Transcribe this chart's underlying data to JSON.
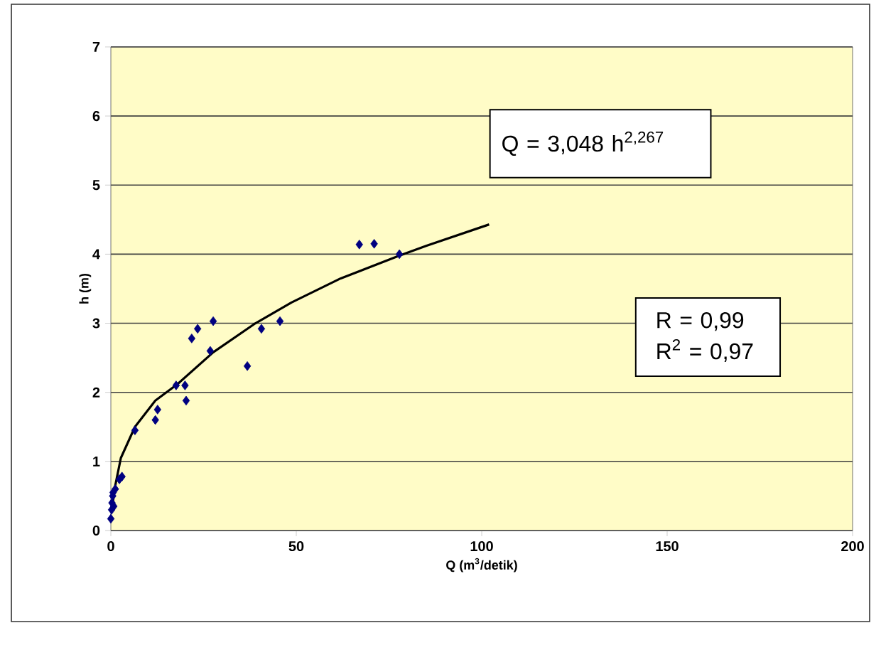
{
  "chart_data": {
    "type": "scatter",
    "xlabel": "Q (m$^{3}$/detik)",
    "ylabel": "h (m)",
    "xlim": [
      0,
      200
    ],
    "xticks": [
      0,
      50,
      100,
      150,
      200
    ],
    "ylim": [
      0,
      7
    ],
    "yticks": [
      0,
      1,
      2,
      3,
      4,
      5,
      6,
      7
    ],
    "grid": "y",
    "marker": "diamond",
    "series": [
      {
        "color": "#000080",
        "x": [
          0,
          0.2,
          0.3,
          0.5,
          0.6,
          0.8,
          1.2,
          2.3,
          3,
          6.5,
          12,
          12.6,
          17.6,
          20,
          20.3,
          21.8,
          23.4,
          26.8,
          27.6,
          36.8,
          40.6,
          45.6,
          67,
          71,
          77.8
        ],
        "values": [
          0.17,
          0.3,
          0.4,
          0.5,
          0.55,
          0.35,
          0.6,
          0.74,
          0.78,
          1.45,
          1.6,
          1.75,
          2.1,
          2.1,
          1.88,
          2.78,
          2.92,
          2.6,
          3.03,
          2.38,
          2.92,
          3.03,
          4.14,
          4.15,
          4.0
        ]
      },
      {
        "type": "line",
        "color": "#000000",
        "marker": "none",
        "line_style": "solid",
        "x": [
          0.3,
          1,
          2.7,
          6.5,
          12,
          18,
          27.6,
          39,
          48.7,
          62,
          77.4,
          85,
          102
        ],
        "values": [
          0.3,
          0.6,
          1.05,
          1.5,
          1.88,
          2.12,
          2.58,
          3.0,
          3.3,
          3.65,
          3.97,
          4.12,
          4.43
        ]
      }
    ],
    "annotations": [
      "Q = 3,048 h$^{2,267}$",
      "R = 0,99\nR$^{2}$ = 0,97"
    ]
  }
}
